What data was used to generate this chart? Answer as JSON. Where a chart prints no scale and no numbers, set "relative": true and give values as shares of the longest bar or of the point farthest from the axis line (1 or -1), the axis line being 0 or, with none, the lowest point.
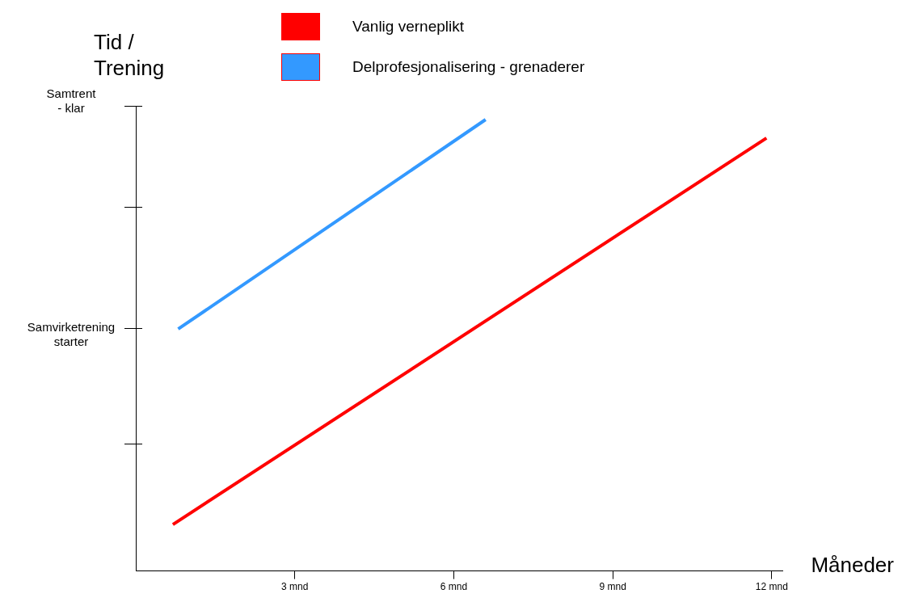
{
  "chart_data": {
    "type": "line",
    "xlabel": "Måneder",
    "ylabel": "Tid /\nTrening",
    "xlim": [
      0,
      12.2
    ],
    "xticks": [
      {
        "value": 3,
        "label": "3 mnd"
      },
      {
        "value": 6,
        "label": "6 mnd"
      },
      {
        "value": 9,
        "label": "9 mnd"
      },
      {
        "value": 12,
        "label": "12 mnd"
      }
    ],
    "relative": true,
    "annotations": [
      "Samvirketrening\nstarter",
      "Samtrent\n- klar"
    ],
    "grid": false,
    "legend": "top",
    "marker": "none",
    "line_style": "solid",
    "series": [
      {
        "name": "Vanlig verneplikt",
        "color": "#ff0000",
        "x": [
          0.7,
          11.9
        ],
        "values": [
          0.103,
          0.959
        ]
      },
      {
        "name": "Delprofesjonalisering - grenaderer",
        "color": "#3399ff",
        "x": [
          0.8,
          6.6
        ],
        "values": [
          0.536,
          1
        ]
      }
    ]
  }
}
